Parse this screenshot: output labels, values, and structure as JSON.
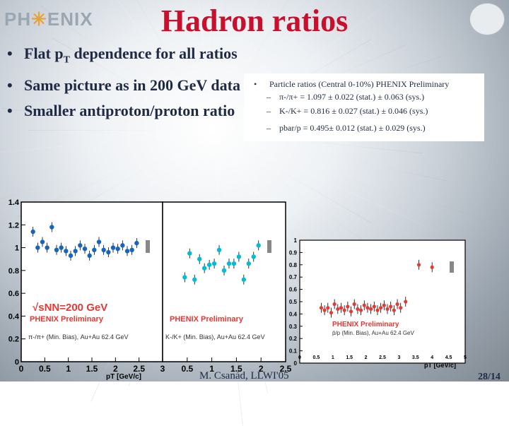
{
  "header": {
    "logo_pre": "PH",
    "logo_star": "✳",
    "logo_post": "ENIX",
    "title": "Hadron ratios"
  },
  "bullets": [
    "Flat pT dependence for all ratios",
    "Same picture as in 200 GeV data",
    "Smaller antiproton/proton ratio"
  ],
  "infobox": {
    "heading": "Particle ratios (Central 0-10%) PHENIX Preliminary",
    "lines": [
      "π-/π+ = 1.097 ± 0.022 (stat.) ± 0.063 (sys.)",
      "K-/K+ = 0.816 ± 0.027 (stat.) ± 0.046 (sys.)",
      "pbar/p = 0.495± 0.012 (stat.) ± 0.029 (sys.)"
    ]
  },
  "footer": "M. Csanád, LLWI'05",
  "page_number": "28/14",
  "colors": {
    "title": "#c8102e",
    "text": "#1f2a44",
    "pion": "#1565c0",
    "kaon": "#00bcd4",
    "proton": "#e53935"
  },
  "chart_data": [
    {
      "type": "scatter",
      "xlabel": "pT [GeV/c]",
      "ylim": [
        0,
        1.4
      ],
      "xlim": [
        0,
        3
      ],
      "yticks": [
        "0",
        "0.2",
        "0.4",
        "0.6",
        "0.8",
        "1",
        "1.2",
        "1.4"
      ],
      "xticks": [
        "0",
        "0.5",
        "1",
        "1.5",
        "2",
        "2.5",
        "3"
      ],
      "annotations": [
        "√sNN=200 GeV",
        "PHENIX Preliminary",
        "π-/π+ (Min. Bias), Au+Au 62.4 GeV"
      ],
      "series": [
        {
          "x": [
            0.25,
            0.35,
            0.45,
            0.55,
            0.65,
            0.75,
            0.85,
            0.95,
            1.05,
            1.15,
            1.25,
            1.35,
            1.45,
            1.55,
            1.65,
            1.75,
            1.85,
            1.95,
            2.05,
            2.15,
            2.25,
            2.35,
            2.45
          ],
          "y": [
            1.14,
            1.0,
            1.05,
            1.0,
            1.18,
            0.98,
            1.0,
            0.97,
            0.93,
            0.97,
            1.02,
            0.99,
            0.93,
            0.98,
            1.05,
            0.98,
            0.96,
            1.0,
            0.99,
            1.02,
            0.97,
            0.98,
            1.04
          ]
        }
      ]
    },
    {
      "type": "scatter",
      "xlabel": "pT [GeV/c]",
      "ylim": [
        0,
        1.4
      ],
      "xlim": [
        0,
        2.5
      ],
      "xticks": [
        "0",
        "0.5",
        "1",
        "1.5",
        "2",
        "2.5"
      ],
      "annotations": [
        "PHENIX Preliminary",
        "K-/K+ (Min. Bias), Au+Au 62.4 GeV"
      ],
      "series": [
        {
          "x": [
            0.45,
            0.55,
            0.65,
            0.75,
            0.85,
            0.95,
            1.05,
            1.15,
            1.25,
            1.35,
            1.45,
            1.55,
            1.65,
            1.75,
            1.85,
            1.95
          ],
          "y": [
            0.74,
            0.95,
            0.72,
            0.9,
            0.82,
            0.85,
            0.86,
            0.98,
            0.8,
            0.86,
            0.86,
            0.92,
            0.72,
            0.86,
            0.92,
            1.02
          ]
        }
      ]
    },
    {
      "type": "scatter",
      "xlabel": "pT [GeV/c]",
      "ylim": [
        0,
        1
      ],
      "xlim": [
        0,
        5
      ],
      "yticks": [
        "0",
        "0.1",
        "0.2",
        "0.3",
        "0.4",
        "0.5",
        "0.6",
        "0.7",
        "0.8",
        "0.9",
        "1"
      ],
      "xticks": [
        "0",
        "0.5",
        "1",
        "1.5",
        "2",
        "2.5",
        "3",
        "3.5",
        "4",
        "4.5",
        "5"
      ],
      "annotations": [
        "PHENIX Preliminary",
        "p̄/p (Min. Bias), Au+Au 62.4 GeV"
      ],
      "series": [
        {
          "x": [
            0.65,
            0.75,
            0.85,
            0.95,
            1.05,
            1.15,
            1.25,
            1.35,
            1.45,
            1.55,
            1.65,
            1.75,
            1.85,
            1.95,
            2.05,
            2.15,
            2.25,
            2.35,
            2.45,
            2.55,
            2.65,
            2.75,
            2.85,
            2.95,
            3.05,
            3.2,
            3.6,
            4.0
          ],
          "y": [
            0.45,
            0.43,
            0.45,
            0.41,
            0.48,
            0.44,
            0.45,
            0.43,
            0.46,
            0.42,
            0.48,
            0.44,
            0.43,
            0.47,
            0.45,
            0.44,
            0.46,
            0.43,
            0.45,
            0.47,
            0.44,
            0.46,
            0.43,
            0.48,
            0.45,
            0.5,
            0.8,
            0.78
          ]
        }
      ]
    }
  ]
}
